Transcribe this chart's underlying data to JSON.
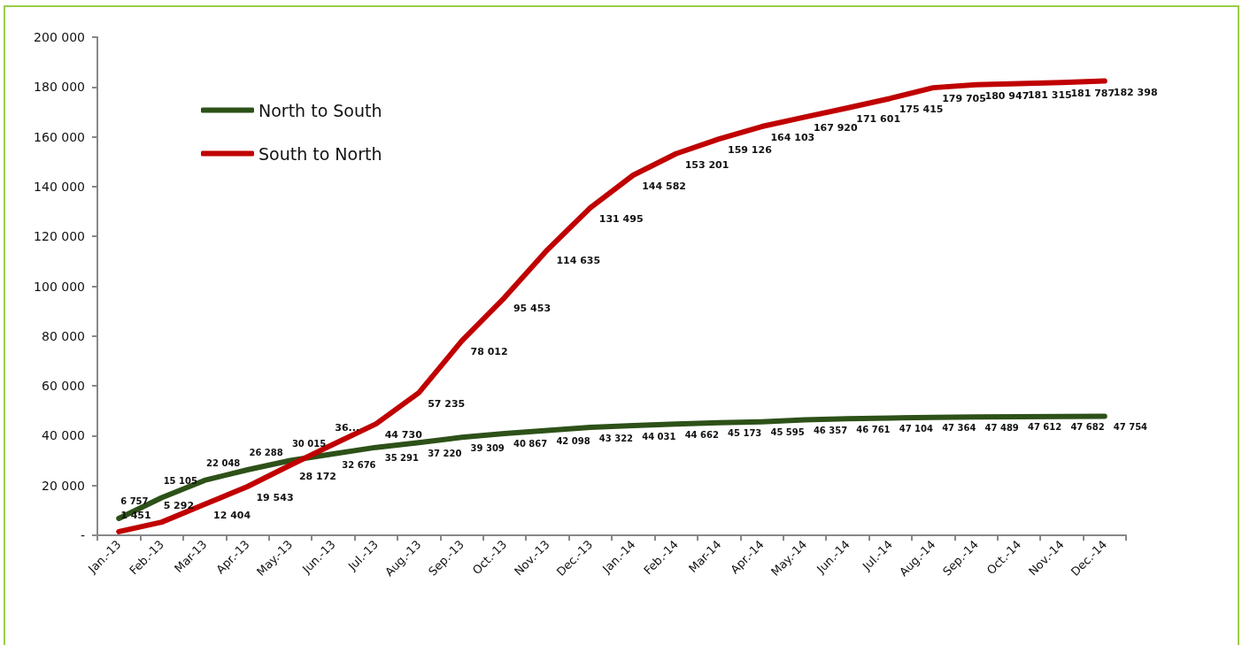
{
  "chart_data": {
    "type": "line",
    "categories": [
      "Jan.-13",
      "Feb.-13",
      "Mar-13",
      "Apr.-13",
      "May.-13",
      "Jun.-13",
      "Jul.-13",
      "Aug.-13",
      "Sep.-13",
      "Oct.-13",
      "Nov.-13",
      "Dec.-13",
      "Jan.-14",
      "Feb.-14",
      "Mar-14",
      "Apr.-14",
      "May.-14",
      "Jun.-14",
      "Jul.-14",
      "Aug.-14",
      "Sep.-14",
      "Oct.-14",
      "Nov.-14",
      "Dec.-14"
    ],
    "series": [
      {
        "name": "North to South",
        "color": "#2d5118",
        "values": [
          6757,
          15105,
          22048,
          26288,
          30015,
          32676,
          35291,
          37220,
          39309,
          40867,
          42098,
          43322,
          44031,
          44662,
          45173,
          45595,
          46357,
          46761,
          47104,
          47364,
          47489,
          47612,
          47682,
          47754
        ],
        "value_labels": [
          "6 757",
          "15 105",
          "22 048",
          "26 288",
          "30 015",
          "32 676",
          "35 291",
          "37 220",
          "39 309",
          "40 867",
          "42 098",
          "43 322",
          "44 031",
          "44 662",
          "45 173",
          "45 595",
          "46 357",
          "46 761",
          "47 104",
          "47 364",
          "47 489",
          "47 612",
          "47 682",
          "47 754"
        ]
      },
      {
        "name": "South to North",
        "color": "#c00000",
        "values": [
          1451,
          5292,
          12404,
          19543,
          28172,
          36500,
          44730,
          57235,
          78012,
          95453,
          114635,
          131495,
          144582,
          153201,
          159126,
          164103,
          167920,
          171601,
          175415,
          179705,
          180947,
          181315,
          181787,
          182398
        ],
        "value_labels": [
          "1 451",
          "5 292",
          "12 404",
          "19 543",
          "28 172",
          "36...",
          "44 730",
          "57 235",
          "78 012",
          "95 453",
          "114 635",
          "131 495",
          "144 582",
          "153 201",
          "159 126",
          "164 103",
          "167 920",
          "171 601",
          "175 415",
          "179 705",
          "180 947",
          "181 315",
          "181 787",
          "182 398"
        ]
      }
    ],
    "ylim": [
      0,
      200000
    ],
    "yticks": [
      {
        "value": 0,
        "label": "-"
      },
      {
        "value": 20000,
        "label": "20 000"
      },
      {
        "value": 40000,
        "label": "40 000"
      },
      {
        "value": 60000,
        "label": "60 000"
      },
      {
        "value": 80000,
        "label": "80 000"
      },
      {
        "value": 100000,
        "label": "100 000"
      },
      {
        "value": 120000,
        "label": "120 000"
      },
      {
        "value": 140000,
        "label": "140 000"
      },
      {
        "value": 160000,
        "label": "160 000"
      },
      {
        "value": 180000,
        "label": "180 000"
      },
      {
        "value": 200000,
        "label": "200 000"
      }
    ],
    "grid": false,
    "legend": "top left",
    "marker": "none",
    "line_style": "solid"
  }
}
